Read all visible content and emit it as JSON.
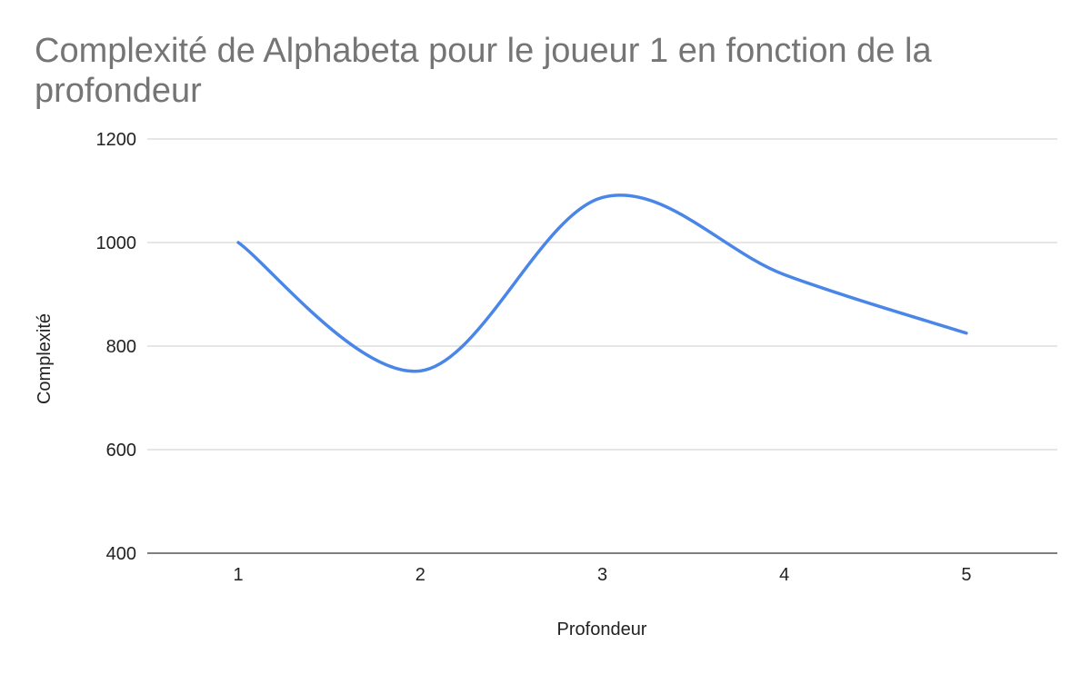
{
  "chart_data": {
    "type": "line",
    "title": "Complexité de Alphabeta pour le joueur 1 en fonction de la profondeur",
    "xlabel": "Profondeur",
    "ylabel": "Complexité",
    "categories": [
      "1",
      "2",
      "3",
      "4",
      "5"
    ],
    "series": [
      {
        "values": [
          1000,
          752,
          1087,
          938,
          825
        ],
        "color": "#4a86e8"
      }
    ],
    "yticks": [
      400,
      600,
      800,
      1000,
      1200
    ],
    "ylim": [
      400,
      1200
    ],
    "grid": true,
    "smooth": true,
    "legend": "none",
    "gridColor": "#cccccc"
  }
}
